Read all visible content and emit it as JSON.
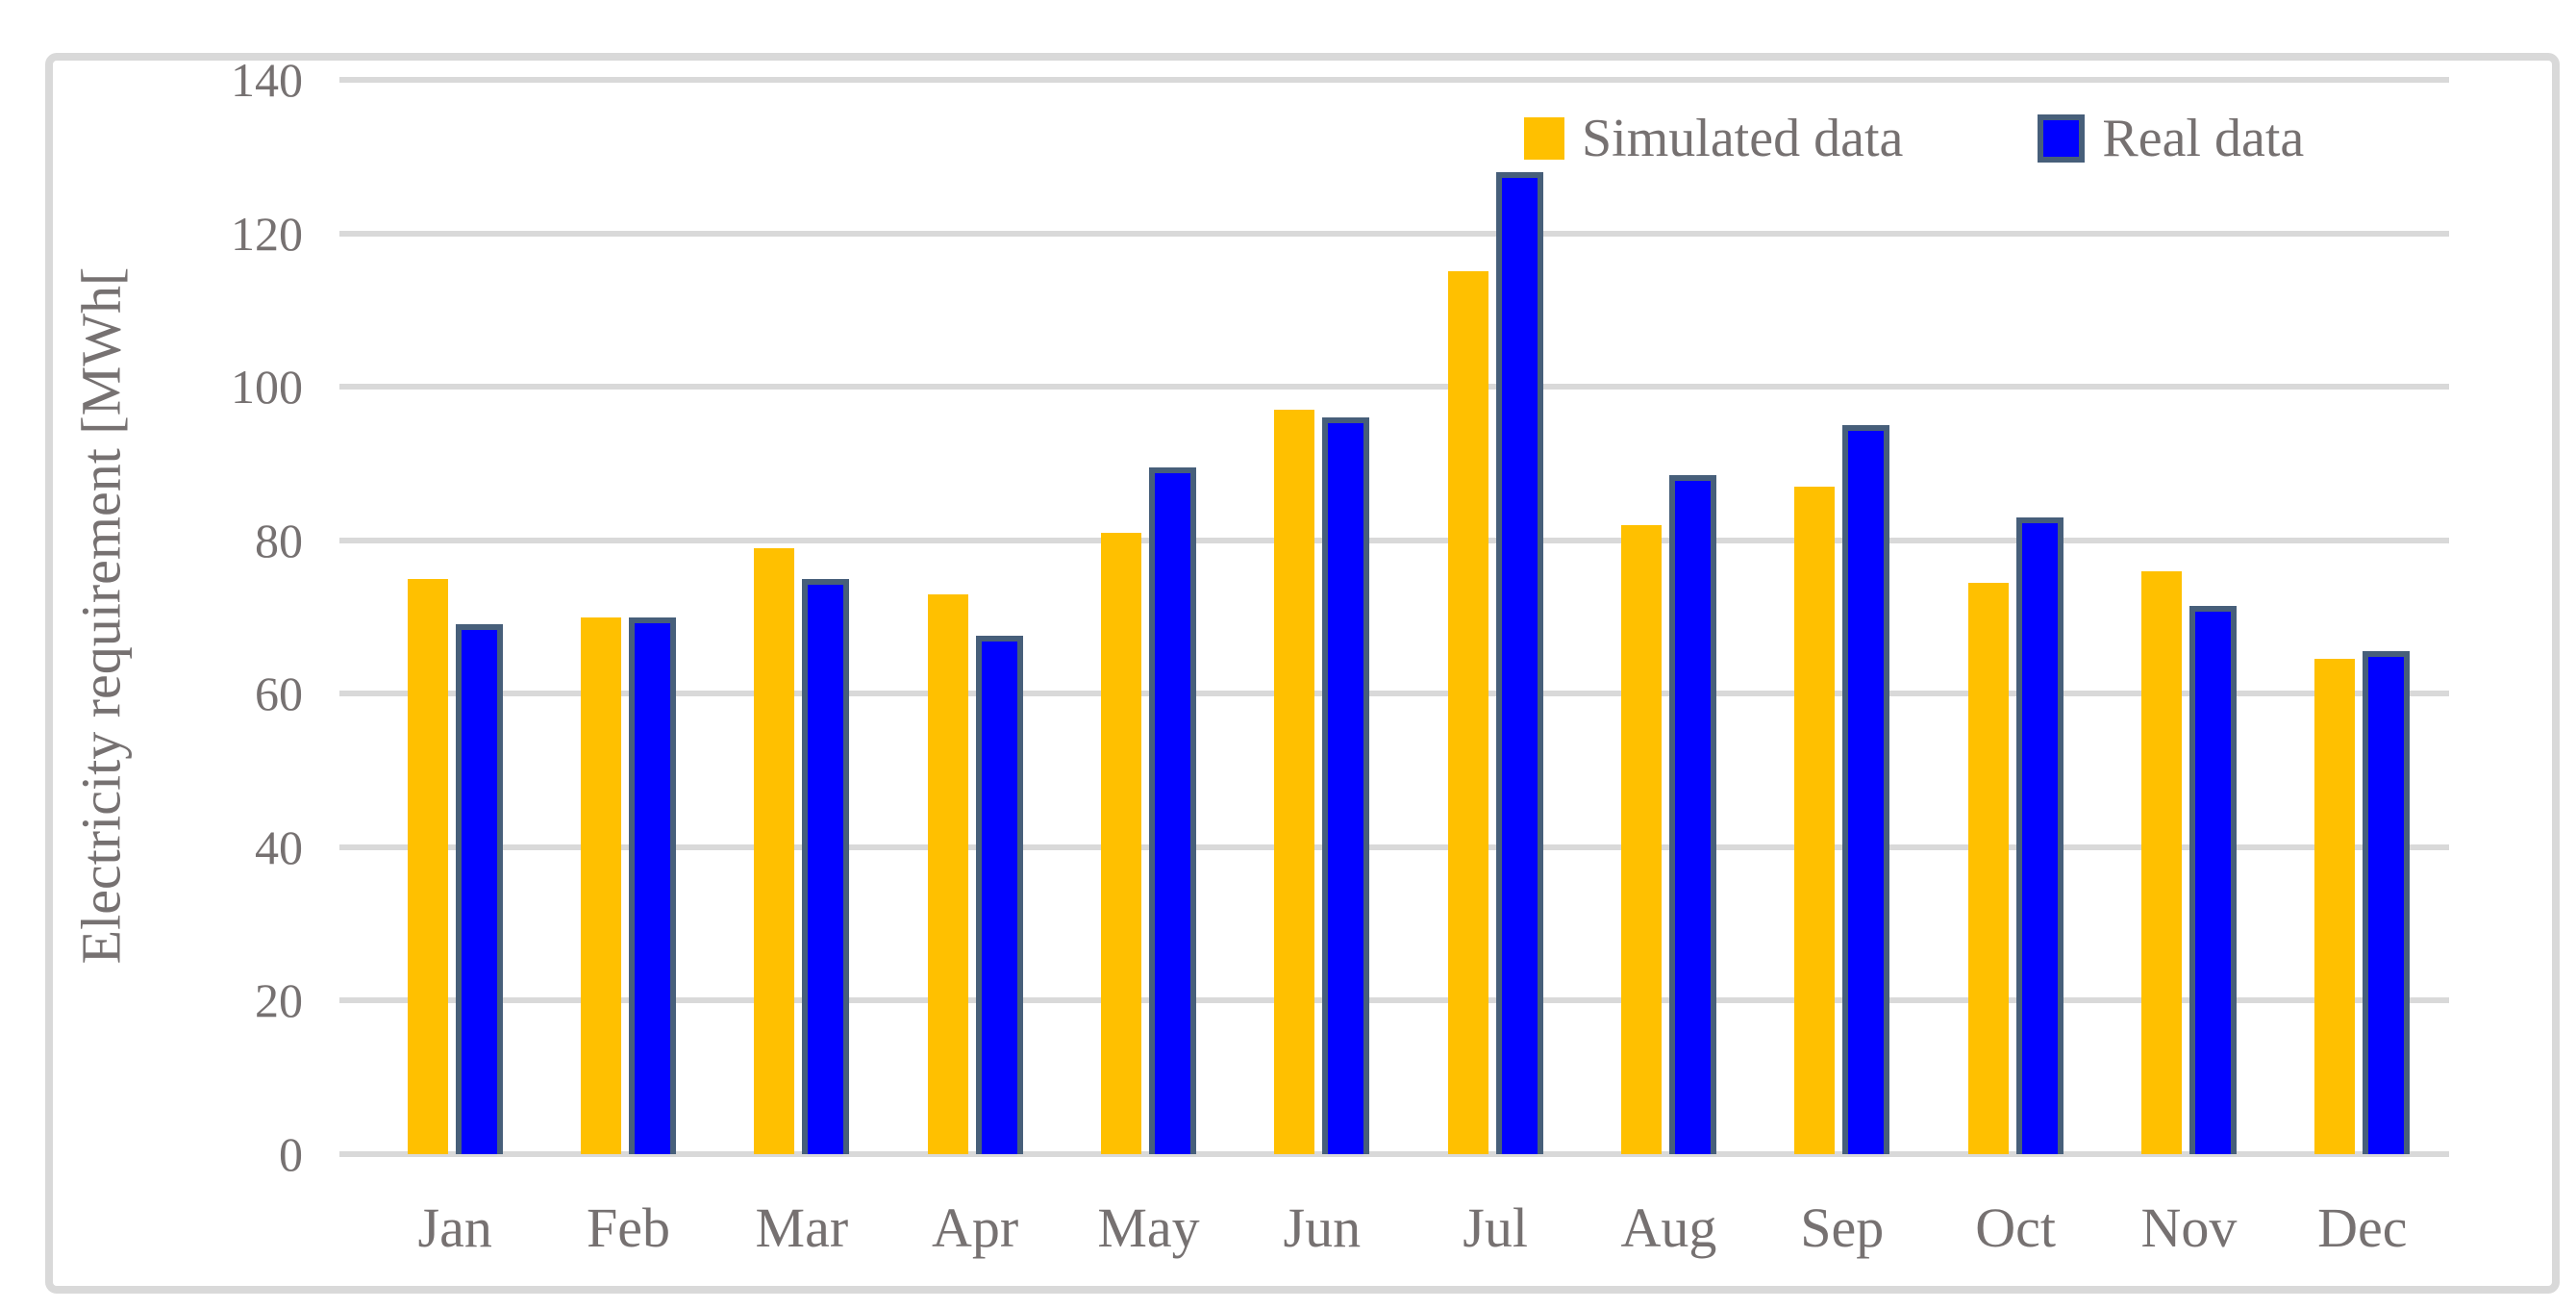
{
  "figure": {
    "background": "#FFFFFF",
    "frame_color": "#D9D9D9",
    "gridline_color": "#D9D9D9",
    "text_color": "#767171"
  },
  "chart_data": {
    "type": "bar",
    "title": "",
    "ylabel": "Electricity requirement [MWh[",
    "xlabel": "",
    "categories": [
      "Jan",
      "Feb",
      "Mar",
      "Apr",
      "May",
      "Jun",
      "Jul",
      "Aug",
      "Sep",
      "Oct",
      "Nov",
      "Dec"
    ],
    "series": [
      {
        "name": "Simulated data",
        "color": "#FFC000",
        "values": [
          75,
          70,
          79,
          73,
          81,
          97,
          115,
          82,
          87,
          74.5,
          76,
          64.5
        ]
      },
      {
        "name": "Real data",
        "color": "#0000FF",
        "border_color": "#475F7A",
        "values": [
          69,
          70,
          75,
          67.5,
          89.5,
          96,
          128,
          88.5,
          95,
          83,
          71.5,
          65.5
        ]
      }
    ],
    "ylim": [
      0,
      140
    ],
    "yticks": [
      0,
      20,
      40,
      60,
      80,
      100,
      120,
      140
    ],
    "grid": true,
    "legend_position": "top-right-inside"
  }
}
